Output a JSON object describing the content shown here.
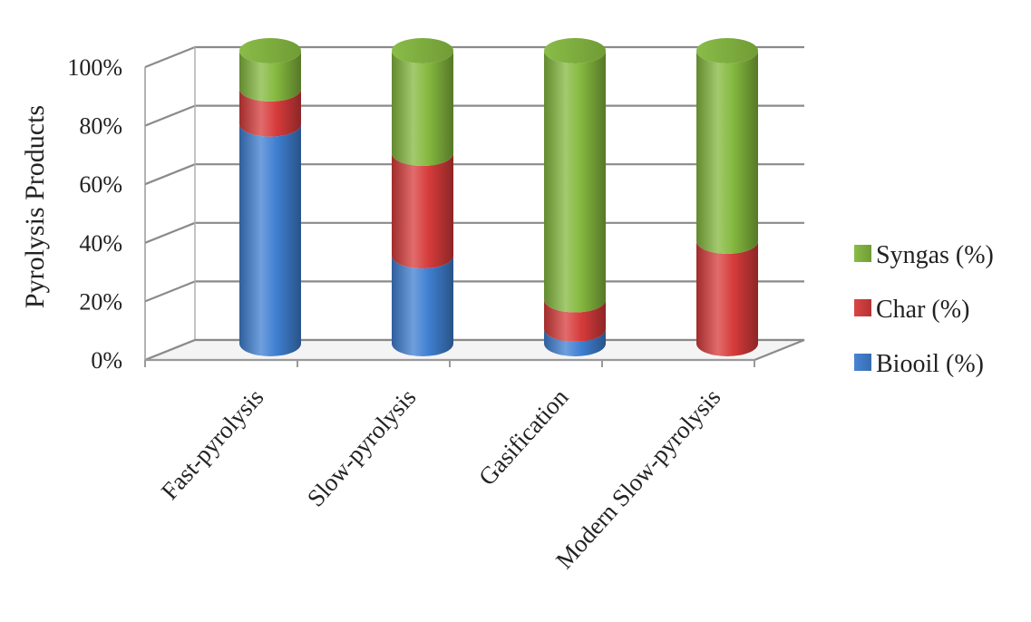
{
  "chart_data": {
    "type": "bar",
    "stacked": true,
    "style": "3d-cylinder",
    "title": "",
    "ylabel": "Pyrolysis Products",
    "xlabel": "",
    "ylim": [
      0,
      100
    ],
    "yticks": [
      "0%",
      "20%",
      "40%",
      "60%",
      "80%",
      "100%"
    ],
    "grid": true,
    "legend_position": "right",
    "categories": [
      "Fast-pyrolysis",
      "Slow-pyrolysis",
      "Gasification",
      "Modern Slow-pyrolysis"
    ],
    "series": [
      {
        "name": "Biooil (%)",
        "color": "#3f7fd1",
        "values": [
          75,
          30,
          5,
          0
        ]
      },
      {
        "name": "Char (%)",
        "color": "#d73b3b",
        "values": [
          12,
          35,
          10,
          35
        ]
      },
      {
        "name": "Syngas (%)",
        "color": "#84b83e",
        "values": [
          13,
          35,
          85,
          65
        ]
      }
    ]
  }
}
